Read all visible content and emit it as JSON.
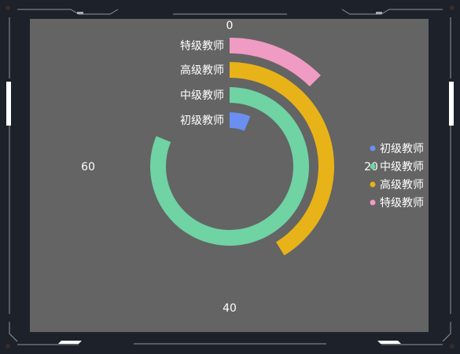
{
  "chart_data": {
    "type": "radial-bar",
    "start_angle_deg": 90,
    "clockwise": true,
    "angle_max": 80,
    "angle_ticks": [
      0,
      20,
      40,
      60
    ],
    "categories": [
      "初级教师",
      "中级教师",
      "高级教师",
      "特级教师"
    ],
    "values": [
      5,
      65,
      33,
      10
    ],
    "colors": [
      "#6b8ff0",
      "#6fd3a3",
      "#e8b318",
      "#f09bc4"
    ],
    "legend_position": "right"
  }
}
